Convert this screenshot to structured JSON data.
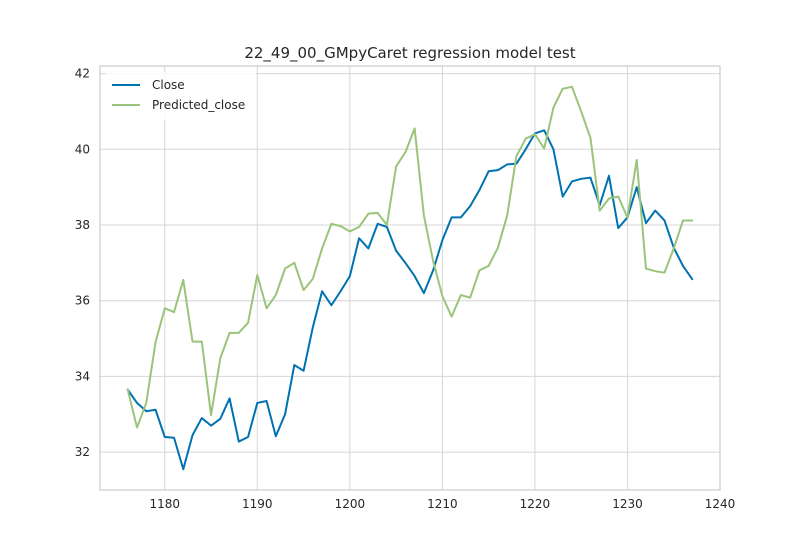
{
  "chart_data": {
    "type": "line",
    "title": "22_49_00_GMpyCaret regression model test",
    "xlabel": "",
    "ylabel": "",
    "xlim": [
      1173,
      1240
    ],
    "ylim": [
      31,
      42.2
    ],
    "xticks": [
      1180,
      1190,
      1200,
      1210,
      1220,
      1230,
      1240
    ],
    "yticks": [
      32,
      34,
      36,
      38,
      40,
      42
    ],
    "grid": true,
    "legend_position": "top-left",
    "x": [
      1176,
      1177,
      1178,
      1179,
      1180,
      1181,
      1182,
      1183,
      1184,
      1185,
      1186,
      1187,
      1188,
      1189,
      1190,
      1191,
      1192,
      1193,
      1194,
      1195,
      1196,
      1197,
      1198,
      1199,
      1200,
      1201,
      1202,
      1203,
      1204,
      1205,
      1206,
      1207,
      1208,
      1209,
      1210,
      1211,
      1212,
      1213,
      1214,
      1215,
      1216,
      1217,
      1218,
      1219,
      1220,
      1221,
      1222,
      1223,
      1224,
      1225,
      1226,
      1227,
      1228,
      1229,
      1230,
      1231,
      1232,
      1233,
      1234,
      1235,
      1236,
      1237
    ],
    "series": [
      {
        "name": "Close",
        "color": "#0072b2",
        "values": [
          33.65,
          33.3,
          33.08,
          33.12,
          32.4,
          32.38,
          31.55,
          32.45,
          32.9,
          32.7,
          32.88,
          33.42,
          32.28,
          32.4,
          33.3,
          33.35,
          32.42,
          33.0,
          34.3,
          34.15,
          35.3,
          36.25,
          35.88,
          36.25,
          36.65,
          37.65,
          37.38,
          38.03,
          37.95,
          37.32,
          37.0,
          36.65,
          36.2,
          36.8,
          37.6,
          38.2,
          38.2,
          38.5,
          38.92,
          39.42,
          39.45,
          39.6,
          39.62,
          40.0,
          40.42,
          40.5,
          40.0,
          38.75,
          39.15,
          39.22,
          39.25,
          38.52,
          39.3,
          37.92,
          38.2,
          39.0,
          38.05,
          38.38,
          38.12,
          37.4,
          36.92,
          36.57
        ]
      },
      {
        "name": "Predicted_close",
        "color": "#99c47a",
        "values": [
          33.65,
          32.65,
          33.3,
          34.9,
          35.8,
          35.7,
          36.55,
          34.92,
          34.92,
          32.98,
          34.48,
          35.15,
          35.15,
          35.42,
          36.68,
          35.8,
          36.15,
          36.85,
          37.0,
          36.28,
          36.58,
          37.38,
          38.03,
          37.97,
          37.83,
          37.95,
          38.3,
          38.32,
          38.0,
          39.55,
          39.92,
          40.55,
          38.25,
          37.05,
          36.12,
          35.58,
          36.15,
          36.08,
          36.8,
          36.92,
          37.4,
          38.25,
          39.82,
          40.28,
          40.4,
          40.02,
          41.1,
          41.6,
          41.65,
          41.0,
          40.3,
          38.38,
          38.7,
          38.75,
          38.2,
          39.72,
          36.85,
          36.78,
          36.74,
          37.38,
          38.12,
          38.12
        ]
      }
    ]
  }
}
